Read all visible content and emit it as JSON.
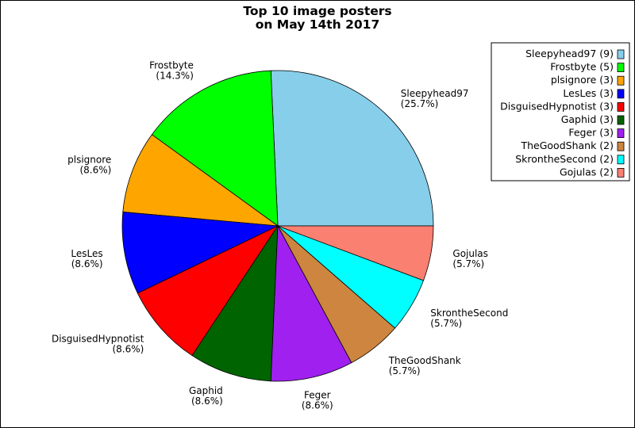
{
  "chart_data": {
    "type": "pie",
    "title_lines": [
      "Top 10 image posters",
      "on May 14th 2017"
    ],
    "legend_placement": "top-right",
    "start_angle_deg": 0,
    "direction": "counterclockwise",
    "slices": [
      {
        "name": "Sleepyhead97",
        "count": 9,
        "pct": "25.7%",
        "color": "#87ceeb"
      },
      {
        "name": "Frostbyte",
        "count": 5,
        "pct": "14.3%",
        "color": "#00ff00"
      },
      {
        "name": "plsignore",
        "count": 3,
        "pct": "8.6%",
        "color": "#ffa500"
      },
      {
        "name": "LesLes",
        "count": 3,
        "pct": "8.6%",
        "color": "#0000ff"
      },
      {
        "name": "DisguisedHypnotist",
        "count": 3,
        "pct": "8.6%",
        "color": "#ff0000"
      },
      {
        "name": "Gaphid",
        "count": 3,
        "pct": "8.6%",
        "color": "#006400"
      },
      {
        "name": "Feger",
        "count": 3,
        "pct": "8.6%",
        "color": "#a020f0"
      },
      {
        "name": "TheGoodShank",
        "count": 2,
        "pct": "5.7%",
        "color": "#cd853f"
      },
      {
        "name": "SkrontheSecond",
        "count": 2,
        "pct": "5.7%",
        "color": "#00ffff"
      },
      {
        "name": "Gojulas",
        "count": 2,
        "pct": "5.7%",
        "color": "#fa8072"
      }
    ]
  }
}
